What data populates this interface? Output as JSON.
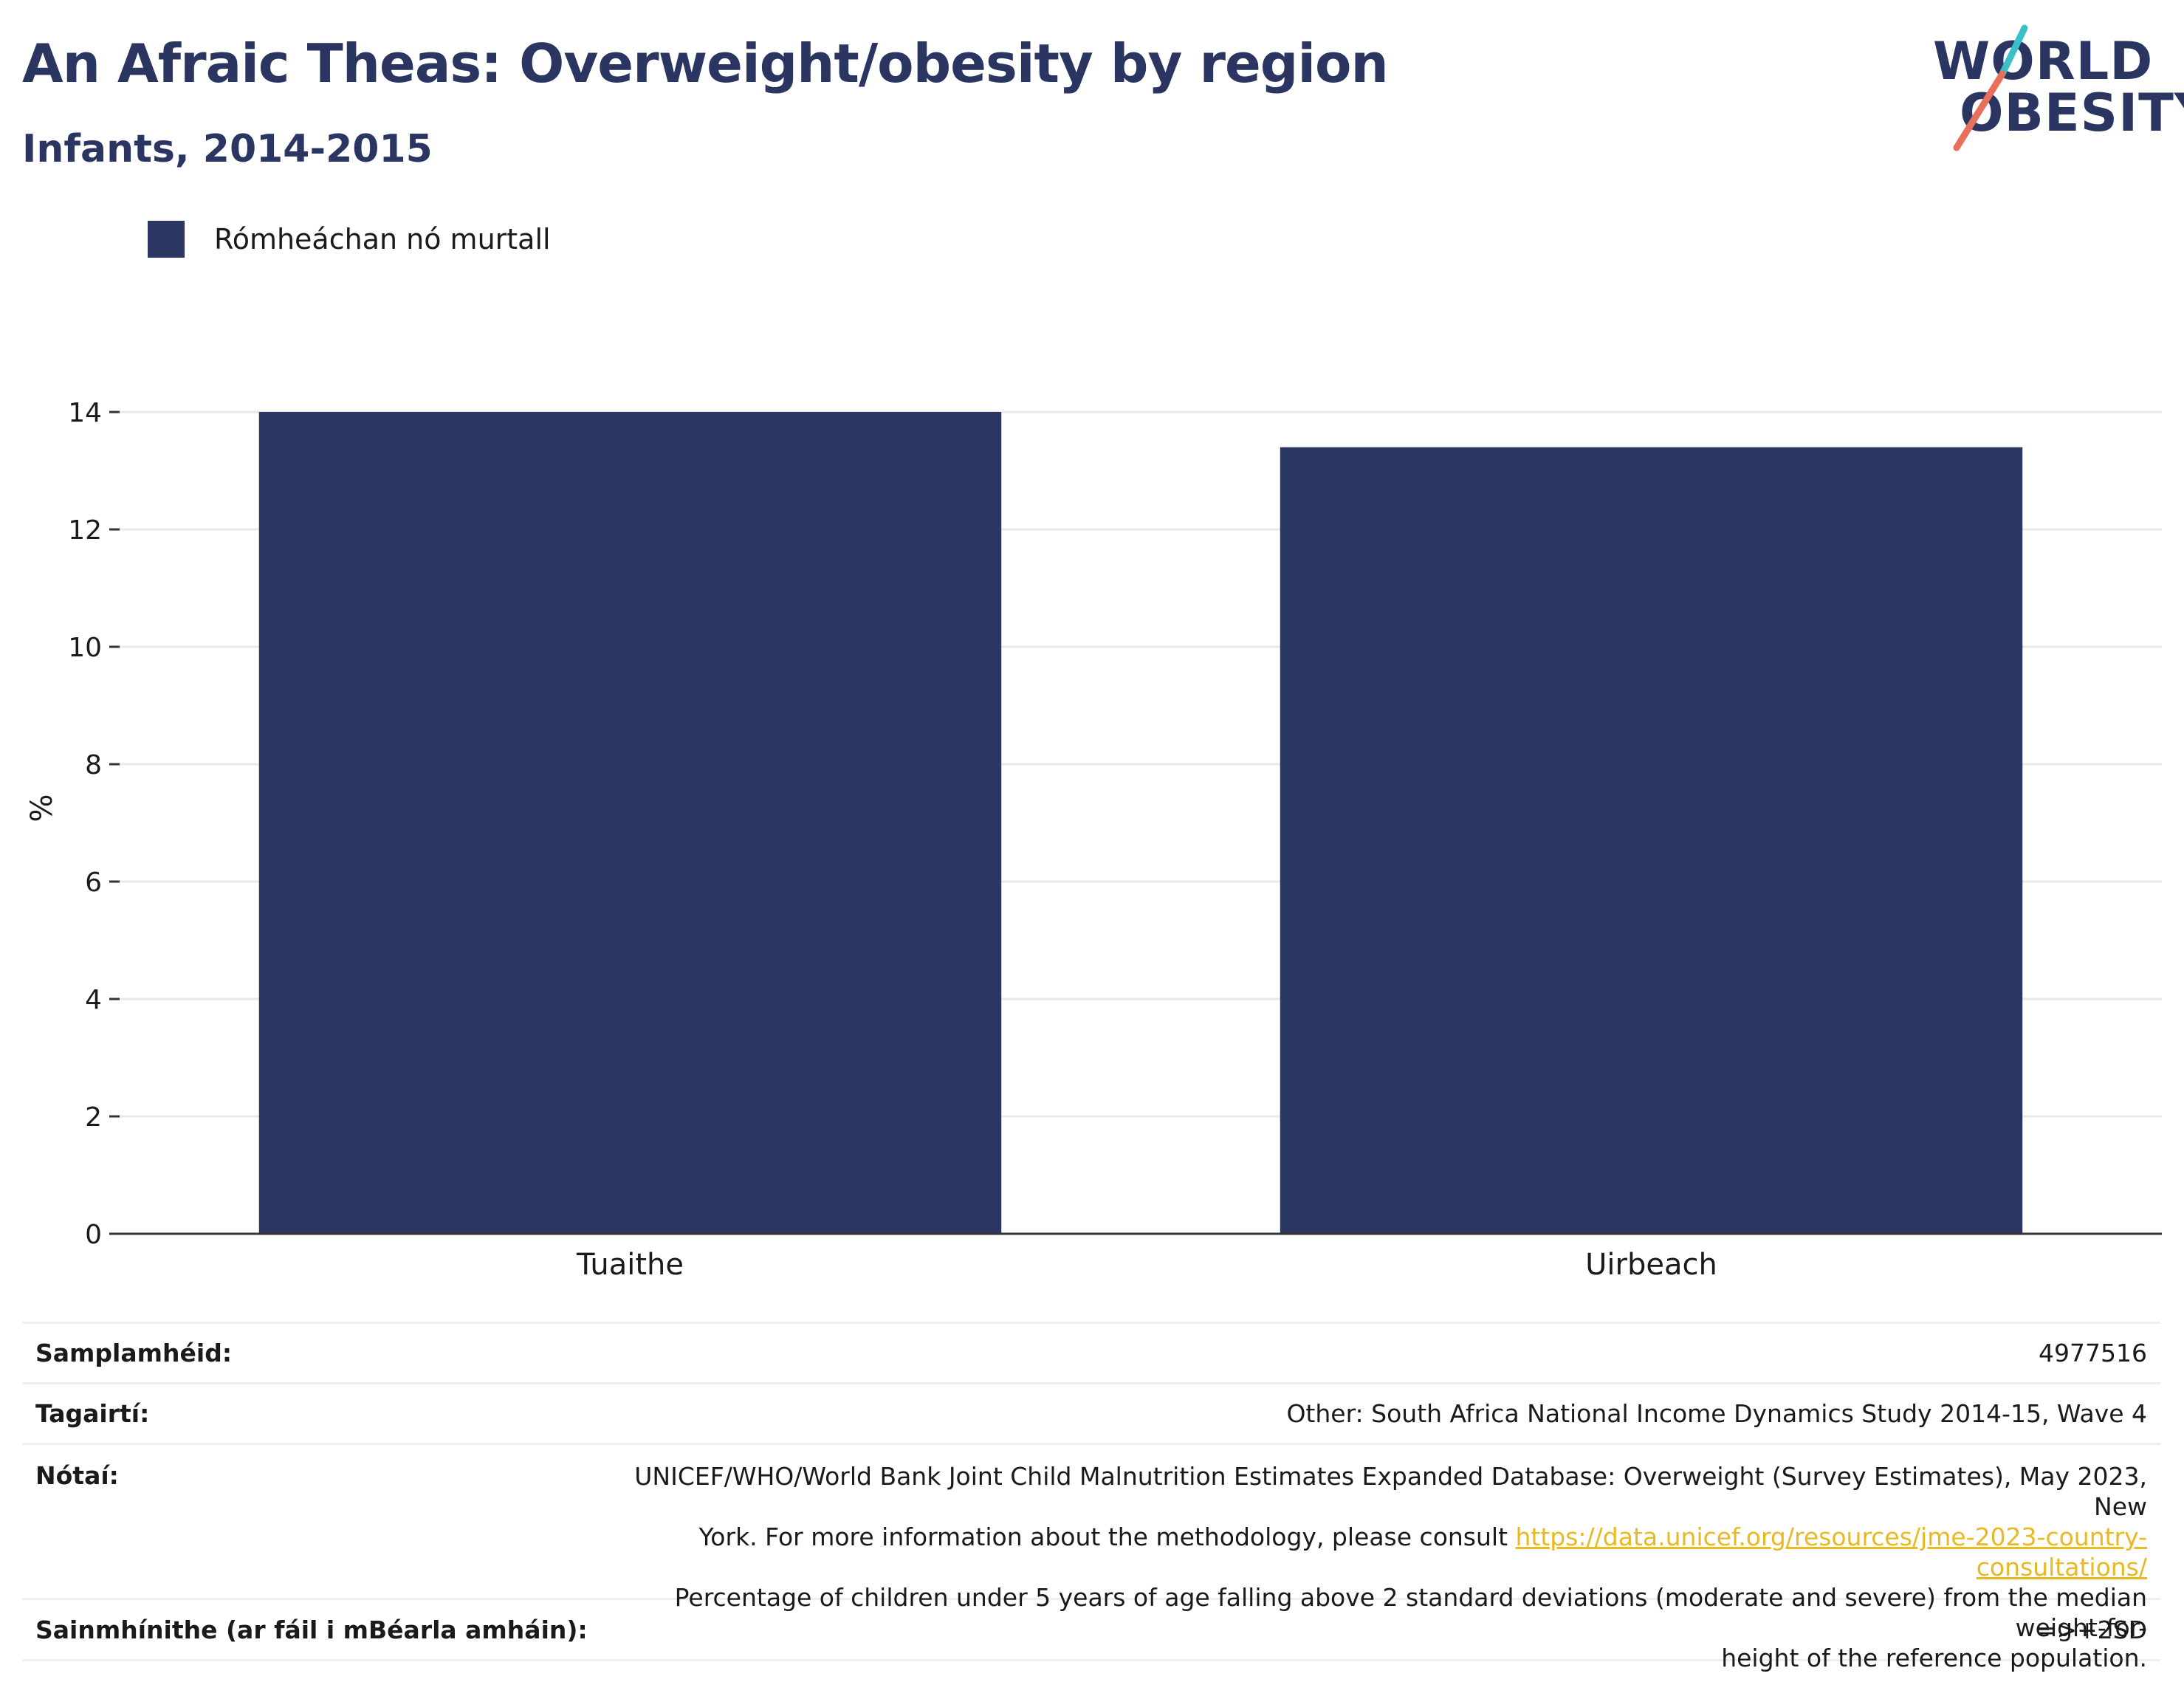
{
  "header": {
    "title": "An Afraic Theas: Overweight/obesity by region",
    "subtitle": "Infants, 2014-2015"
  },
  "logo": {
    "line1": "WORLD",
    "line2": "OBESITY",
    "colors": [
      "#2b3561",
      "#3bbfc9",
      "#e8705a"
    ]
  },
  "legend": {
    "items": [
      {
        "label": "Rómheáchan nó murtall",
        "color": "#2b3662"
      }
    ]
  },
  "chart_data": {
    "type": "bar",
    "categories": [
      "Tuaithe",
      "Uirbeach"
    ],
    "series": [
      {
        "name": "Rómheáchan nó murtall",
        "values": [
          14.0,
          13.4
        ]
      }
    ],
    "title": "An Afraic Theas: Overweight/obesity by region",
    "subtitle": "Infants, 2014-2015",
    "xlabel": "",
    "ylabel": "%",
    "ylim": [
      0,
      14
    ],
    "yticks": [
      0,
      2,
      4,
      6,
      8,
      10,
      12,
      14
    ],
    "grid": true,
    "legend_position": "top-left",
    "bar_color": "#2b3662"
  },
  "info": {
    "sample_label": "Samplamhéid:",
    "sample_value": "4977516",
    "ref_label": "Tagairtí:",
    "ref_value": "Other: South Africa National Income Dynamics Study 2014-15, Wave 4",
    "notes_label": "Nótaí:",
    "notes_line1": "UNICEF/WHO/World Bank Joint Child Malnutrition Estimates Expanded Database: Overweight (Survey Estimates), May 2023, New",
    "notes_line2_prefix": "York. For more information about the methodology, please consult ",
    "notes_link": "https://data.unicef.org/resources/jme-2023-country-consultations/",
    "notes_line3": "Percentage of children under 5 years of age falling above 2 standard deviations (moderate and severe) from the median weight-for-",
    "notes_line4": "height of the reference population.",
    "def_label": "Sainmhínithe (ar fáil i mBéarla amháin):",
    "def_value": "=>+2SD"
  }
}
